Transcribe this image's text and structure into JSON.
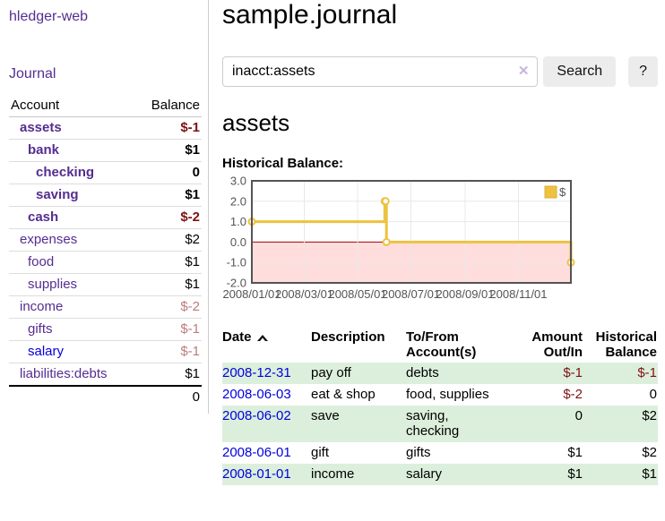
{
  "colors": {
    "link_purple": "#552d90",
    "link_blue": "#0000dd",
    "negative": "#7d1212",
    "negative_muted": "#bd7b7b",
    "stripe_green": "#dcefdc",
    "chart_gold": "#edc240",
    "chart_negative_zone": "#ffdddd",
    "chart_zero_line": "#aa0000",
    "chart_border": "#545454",
    "button_bg": "#ececec"
  },
  "app": {
    "title": "hledger-web"
  },
  "sidebar": {
    "nav_journal": "Journal",
    "header": {
      "account": "Account",
      "balance": "Balance"
    },
    "accounts": [
      {
        "name": "assets",
        "indent": 0,
        "bold": true,
        "link": "purple",
        "balance": "$-1",
        "balance_class": "neg bold"
      },
      {
        "name": "bank",
        "indent": 1,
        "bold": true,
        "link": "purple",
        "balance": "$1",
        "balance_class": "bold"
      },
      {
        "name": "checking",
        "indent": 2,
        "bold": true,
        "link": "purple",
        "balance": "0",
        "balance_class": "bold"
      },
      {
        "name": "saving",
        "indent": 2,
        "bold": true,
        "link": "purple",
        "balance": "$1",
        "balance_class": "bold"
      },
      {
        "name": "cash",
        "indent": 1,
        "bold": true,
        "link": "purple",
        "balance": "$-2",
        "balance_class": "neg bold"
      },
      {
        "name": "expenses",
        "indent": 0,
        "bold": false,
        "link": "purple",
        "balance": "$2",
        "balance_class": ""
      },
      {
        "name": "food",
        "indent": 1,
        "bold": false,
        "link": "purple",
        "balance": "$1",
        "balance_class": ""
      },
      {
        "name": "supplies",
        "indent": 1,
        "bold": false,
        "link": "purple",
        "balance": "$1",
        "balance_class": ""
      },
      {
        "name": "income",
        "indent": 0,
        "bold": false,
        "link": "purple",
        "balance": "$-2",
        "balance_class": "neg-muted"
      },
      {
        "name": "gifts",
        "indent": 1,
        "bold": false,
        "link": "purple",
        "balance": "$-1",
        "balance_class": "neg-muted"
      },
      {
        "name": "salary",
        "indent": 1,
        "bold": false,
        "link": "blue",
        "balance": "$-1",
        "balance_class": "neg-muted"
      },
      {
        "name": "liabilities:debts",
        "indent": 0,
        "bold": false,
        "link": "purple",
        "balance": "$1",
        "balance_class": ""
      }
    ],
    "total": "0"
  },
  "main": {
    "title": "sample.journal",
    "search": {
      "value": "inacct:assets",
      "clear_glyph": "✕",
      "button_label": "Search",
      "help_label": "?"
    },
    "account_heading": "assets",
    "chart_label": "Historical Balance:"
  },
  "chart_data": {
    "type": "line",
    "step": true,
    "title": "Historical Balance:",
    "series": [
      {
        "name": "$",
        "color": "#edc240",
        "x": [
          "2008-01-01",
          "2008-06-01",
          "2008-06-02",
          "2008-06-03",
          "2008-12-31"
        ],
        "y": [
          1,
          2,
          2,
          0,
          -1
        ]
      }
    ],
    "xlim": [
      "2008-01-01",
      "2008-12-31"
    ],
    "ylim": [
      -2,
      3
    ],
    "x_ticks": [
      {
        "date": "2008-01-01",
        "label": "2008/01/01"
      },
      {
        "date": "2008-03-01",
        "label": "2008/03/01"
      },
      {
        "date": "2008-05-01",
        "label": "2008/05/01"
      },
      {
        "date": "2008-07-01",
        "label": "2008/07/01"
      },
      {
        "date": "2008-09-01",
        "label": "2008/09/01"
      },
      {
        "date": "2008-11-01",
        "label": "2008/11/01"
      }
    ],
    "y_ticks": [
      "3.0",
      "2.0",
      "1.0",
      "0.0",
      "-1.0",
      "-2.0"
    ],
    "grid": true,
    "legend": {
      "label": "$",
      "position": "top-right"
    },
    "negative_zone_fill": "#ffdddd",
    "zero_line_color": "#aa0000"
  },
  "register": {
    "headers": {
      "date": "Date",
      "description": "Description",
      "accounts": "To/From Account(s)",
      "amount": "Amount Out/In",
      "balance": "Historical Balance"
    },
    "rows": [
      {
        "date": "2008-12-31",
        "description": "pay off",
        "accounts": "debts",
        "amount": "$-1",
        "amount_neg": true,
        "balance": "$-1",
        "balance_neg": true
      },
      {
        "date": "2008-06-03",
        "description": "eat & shop",
        "accounts": "food, supplies",
        "amount": "$-2",
        "amount_neg": true,
        "balance": "0",
        "balance_neg": false
      },
      {
        "date": "2008-06-02",
        "description": "save",
        "accounts": "saving, checking",
        "amount": "0",
        "amount_neg": false,
        "balance": "$2",
        "balance_neg": false
      },
      {
        "date": "2008-06-01",
        "description": "gift",
        "accounts": "gifts",
        "amount": "$1",
        "amount_neg": false,
        "balance": "$2",
        "balance_neg": false
      },
      {
        "date": "2008-01-01",
        "description": "income",
        "accounts": "salary",
        "amount": "$1",
        "amount_neg": false,
        "balance": "$1",
        "balance_neg": false
      }
    ]
  }
}
